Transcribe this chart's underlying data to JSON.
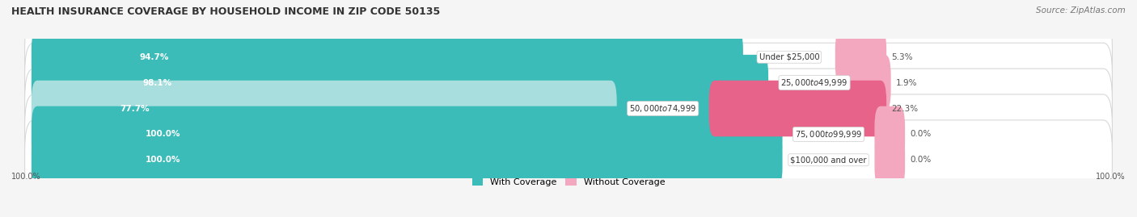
{
  "title": "HEALTH INSURANCE COVERAGE BY HOUSEHOLD INCOME IN ZIP CODE 50135",
  "source": "Source: ZipAtlas.com",
  "categories": [
    "Under $25,000",
    "$25,000 to $49,999",
    "$50,000 to $74,999",
    "$75,000 to $99,999",
    "$100,000 and over"
  ],
  "with_coverage": [
    94.7,
    98.1,
    77.7,
    100.0,
    100.0
  ],
  "without_coverage": [
    5.3,
    1.9,
    22.3,
    0.0,
    0.0
  ],
  "color_with": "#3bbcb8",
  "color_without_row2": "#e8638a",
  "color_without": "#f4a8c0",
  "color_with_light": "#a8dedd",
  "legend_with": "With Coverage",
  "legend_without": "Without Coverage",
  "bar_height": 0.62,
  "row_bg": "#ebebeb",
  "figsize": [
    14.06,
    2.69
  ],
  "dpi": 100
}
